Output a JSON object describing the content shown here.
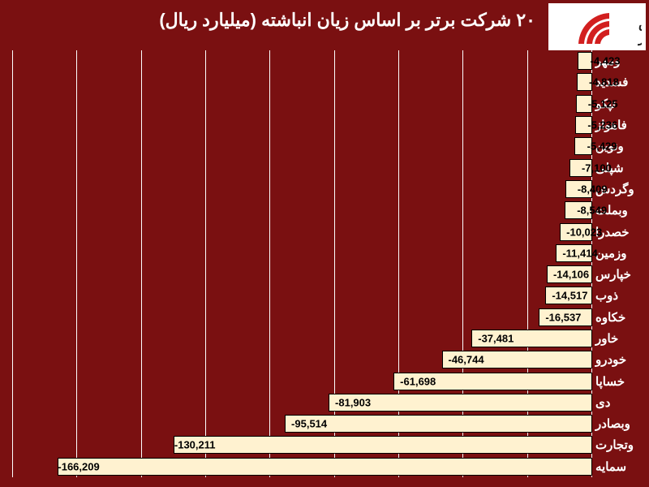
{
  "title": "۲۰ شرکت برتر بر اساس زیان انباشته (میلیارد ریال)",
  "logo": {
    "brand": "بورس نیوز",
    "arc_color": "#d21f1f",
    "bg": "#ffffff"
  },
  "chart": {
    "type": "bar-horizontal",
    "background": "#7a1011",
    "bar_fill": "#fff2d0",
    "bar_border": "#000000",
    "grid_color": "#fefefe",
    "label_color_category": "#ffffff",
    "label_color_inside": "#000000",
    "title_fontsize": 22,
    "cat_fontsize": 15,
    "value_fontsize": 13,
    "xmin": -180000,
    "xmax": 0,
    "grid_step": 20000,
    "data": [
      {
        "name": "ومهر",
        "value": -4423,
        "label": "-4,423"
      },
      {
        "name": "فسدید",
        "value": -4818,
        "label": "-4,818"
      },
      {
        "name": "تپکو",
        "value": -5125,
        "label": "-5,125"
      },
      {
        "name": "فاهواز",
        "value": -5236,
        "label": "-5,236"
      },
      {
        "name": "ونوین",
        "value": -5429,
        "label": "-5,429"
      },
      {
        "name": "شپلی",
        "value": -7100,
        "label": "-7,100"
      },
      {
        "name": "وگردش",
        "value": -8409,
        "label": "-8,409"
      },
      {
        "name": "وبملت",
        "value": -8549,
        "label": "-8,549"
      },
      {
        "name": "خصدرا",
        "value": -10023,
        "label": "-10,023"
      },
      {
        "name": "وزمین",
        "value": -11414,
        "label": "-11,414"
      },
      {
        "name": "خپارس",
        "value": -14106,
        "label": "-14,106"
      },
      {
        "name": "ذوب",
        "value": -14517,
        "label": "-14,517"
      },
      {
        "name": "خکاوه",
        "value": -16537,
        "label": "-16,537"
      },
      {
        "name": "خاور",
        "value": -37481,
        "label": "-37,481"
      },
      {
        "name": "خودرو",
        "value": -46744,
        "label": "-46,744"
      },
      {
        "name": "خساپا",
        "value": -61698,
        "label": "-61,698"
      },
      {
        "name": "دی",
        "value": -81903,
        "label": "-81,903"
      },
      {
        "name": "وبصادر",
        "value": -95514,
        "label": "-95,514"
      },
      {
        "name": "وتجارت",
        "value": -130211,
        "label": "-130,211"
      },
      {
        "name": "سمایه",
        "value": -166209,
        "label": "-166,209"
      }
    ]
  }
}
